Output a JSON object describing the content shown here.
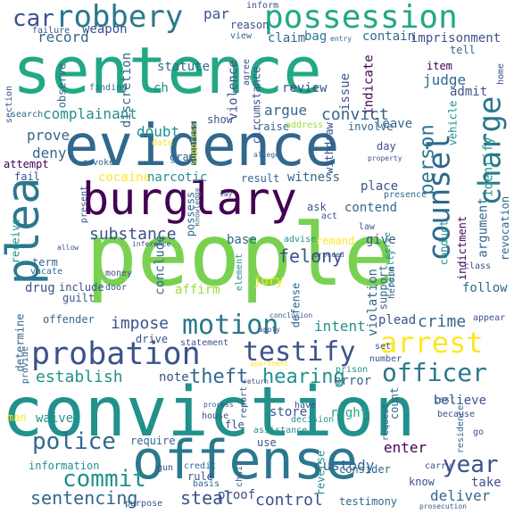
{
  "words": [
    {
      "text": "people",
      "color": "#7ad151"
    },
    {
      "text": "conviction",
      "color": "#21918c"
    },
    {
      "text": "sentence",
      "color": "#22a884"
    },
    {
      "text": "evidence",
      "color": "#31688e"
    },
    {
      "text": "offense",
      "color": "#2a788e"
    },
    {
      "text": "burglary",
      "color": "#440154"
    },
    {
      "text": "plea",
      "color": "#2a788e"
    },
    {
      "text": "possession",
      "color": "#22a884"
    },
    {
      "text": "robbery",
      "color": "#2a788e"
    },
    {
      "text": "probation",
      "color": "#3b528b"
    },
    {
      "text": "counsel",
      "color": "#31688e"
    },
    {
      "text": "charge",
      "color": "#2a788e"
    },
    {
      "text": "arrest",
      "color": "#fde725"
    },
    {
      "text": "motion",
      "color": "#2a788e"
    },
    {
      "text": "testify",
      "color": "#3b528b"
    },
    {
      "text": "officer",
      "color": "#2a788e"
    },
    {
      "text": "police",
      "color": "#31688e"
    },
    {
      "text": "commit",
      "color": "#21918c"
    },
    {
      "text": "year",
      "color": "#3b528b"
    },
    {
      "text": "car",
      "color": "#3b528b"
    },
    {
      "text": "sentencing",
      "color": "#31688e"
    },
    {
      "text": "hearing",
      "color": "#21918c"
    },
    {
      "text": "theft",
      "color": "#31688e"
    },
    {
      "text": "establish",
      "color": "#21918c"
    },
    {
      "text": "felony",
      "color": "#3b528b"
    },
    {
      "text": "steal",
      "color": "#3b528b"
    },
    {
      "text": "control",
      "color": "#3b528b"
    },
    {
      "text": "complainant",
      "color": "#21918c"
    },
    {
      "text": "person",
      "color": "#2a788e"
    },
    {
      "text": "crime",
      "color": "#31688e"
    },
    {
      "text": "deliver",
      "color": "#31688e"
    },
    {
      "text": "take",
      "color": "#3b528b"
    },
    {
      "text": "substance",
      "color": "#3b528b"
    },
    {
      "text": "impose",
      "color": "#3b528b"
    },
    {
      "text": "convict",
      "color": "#31688e"
    },
    {
      "text": "prove",
      "color": "#31688e"
    },
    {
      "text": "record",
      "color": "#31688e"
    },
    {
      "text": "weapon",
      "color": "#3b528b"
    },
    {
      "text": "argue",
      "color": "#31688e"
    },
    {
      "text": "doubt",
      "color": "#21918c"
    },
    {
      "text": "deny",
      "color": "#31688e"
    },
    {
      "text": "cocaine",
      "color": "#fde725"
    },
    {
      "text": "narcotic",
      "color": "#21918c"
    },
    {
      "text": "witness",
      "color": "#31688e"
    },
    {
      "text": "intent",
      "color": "#21918c"
    },
    {
      "text": "enter",
      "color": "#440154"
    },
    {
      "text": "custody",
      "color": "#31688e"
    },
    {
      "text": "store",
      "color": "#3b528b"
    },
    {
      "text": "right",
      "color": "#22a884"
    },
    {
      "text": "error",
      "color": "#31688e"
    },
    {
      "text": "note",
      "color": "#3b528b"
    },
    {
      "text": "drug",
      "color": "#3b528b"
    },
    {
      "text": "statute",
      "color": "#31688e"
    },
    {
      "text": "par",
      "color": "#3b528b"
    },
    {
      "text": "reason",
      "color": "#3b528b"
    },
    {
      "text": "contain",
      "color": "#31688e"
    },
    {
      "text": "imprisonment",
      "color": "#3b528b"
    },
    {
      "text": "claim",
      "color": "#31688e"
    },
    {
      "text": "bag",
      "color": "#2a788e"
    },
    {
      "text": "judge",
      "color": "#31688e"
    },
    {
      "text": "item",
      "color": "#440154"
    },
    {
      "text": "tell",
      "color": "#31688e"
    },
    {
      "text": "admit",
      "color": "#3b528b"
    },
    {
      "text": "review",
      "color": "#3b528b"
    },
    {
      "text": "issue",
      "color": "#3b528b"
    },
    {
      "text": "indicate",
      "color": "#440154"
    },
    {
      "text": "leave",
      "color": "#31688e"
    },
    {
      "text": "vehicle",
      "color": "#21918c"
    },
    {
      "text": "identify",
      "color": "#21918c"
    },
    {
      "text": "ch",
      "color": "#21918c"
    },
    {
      "text": "show",
      "color": "#3b528b"
    },
    {
      "text": "violence",
      "color": "#3b528b"
    },
    {
      "text": "discretion",
      "color": "#31688e"
    },
    {
      "text": "observe",
      "color": "#31688e"
    },
    {
      "text": "finding",
      "color": "#31688e"
    },
    {
      "text": "circumstance",
      "color": "#3b528b"
    },
    {
      "text": "raise",
      "color": "#31688e"
    },
    {
      "text": "address",
      "color": "#a0da39"
    },
    {
      "text": "withdraw",
      "color": "#3b528b"
    },
    {
      "text": "involve",
      "color": "#31688e"
    },
    {
      "text": "day",
      "color": "#3b528b"
    },
    {
      "text": "fail",
      "color": "#3b528b"
    },
    {
      "text": "attempt",
      "color": "#440154"
    },
    {
      "text": "gram",
      "color": "#31688e"
    },
    {
      "text": "result",
      "color": "#31688e"
    },
    {
      "text": "ask",
      "color": "#3b528b"
    },
    {
      "text": "act",
      "color": "#3b528b"
    },
    {
      "text": "contend",
      "color": "#31688e"
    },
    {
      "text": "place",
      "color": "#3b528b"
    },
    {
      "text": "conduct",
      "color": "#21918c"
    },
    {
      "text": "argument",
      "color": "#31688e"
    },
    {
      "text": "revocation",
      "color": "#31688e"
    },
    {
      "text": "indictment",
      "color": "#440154"
    },
    {
      "text": "base",
      "color": "#31688e"
    },
    {
      "text": "remand",
      "color": "#fde725"
    },
    {
      "text": "give",
      "color": "#3b528b"
    },
    {
      "text": "conclude",
      "color": "#31688e"
    },
    {
      "text": "possess",
      "color": "#31688e"
    },
    {
      "text": "receive",
      "color": "#21918c"
    },
    {
      "text": "term",
      "color": "#31688e"
    },
    {
      "text": "include",
      "color": "#3b528b"
    },
    {
      "text": "guilt",
      "color": "#3b528b"
    },
    {
      "text": "affirm",
      "color": "#a0da39"
    },
    {
      "text": "jury",
      "color": "#fde725"
    },
    {
      "text": "defense",
      "color": "#31688e"
    },
    {
      "text": "violation",
      "color": "#31688e"
    },
    {
      "text": "support",
      "color": "#31688e"
    },
    {
      "text": "plead",
      "color": "#3b528b"
    },
    {
      "text": "follow",
      "color": "#31688e"
    },
    {
      "text": "offender",
      "color": "#31688e"
    },
    {
      "text": "determine",
      "color": "#31688e"
    },
    {
      "text": "drive",
      "color": "#3b528b"
    },
    {
      "text": "statement",
      "color": "#3b528b"
    },
    {
      "text": "believe",
      "color": "#3b528b"
    },
    {
      "text": "count",
      "color": "#31688e"
    },
    {
      "text": "man",
      "color": "#fde725"
    },
    {
      "text": "waive",
      "color": "#21918c"
    },
    {
      "text": "require",
      "color": "#31688e"
    },
    {
      "text": "information",
      "color": "#21918c"
    },
    {
      "text": "consider",
      "color": "#31688e"
    },
    {
      "text": "rule",
      "color": "#3b528b"
    },
    {
      "text": "proof",
      "color": "#3b528b"
    },
    {
      "text": "reverse",
      "color": "#21918c"
    },
    {
      "text": "testimony",
      "color": "#31688e"
    },
    {
      "text": "use",
      "color": "#3b528b"
    },
    {
      "text": "fle",
      "color": "#3b528b"
    },
    {
      "text": "know",
      "color": "#3b528b"
    },
    {
      "text": "test",
      "color": "#31688e"
    },
    {
      "text": "money",
      "color": "#3b528b"
    },
    {
      "text": "door",
      "color": "#3b528b"
    },
    {
      "text": "penalty",
      "color": "#21918c"
    },
    {
      "text": "serve",
      "color": "#21918c"
    },
    {
      "text": "class",
      "color": "#3b528b"
    },
    {
      "text": "law",
      "color": "#3b528b"
    },
    {
      "text": "element",
      "color": "#21918c"
    },
    {
      "text": "advise",
      "color": "#21918c"
    },
    {
      "text": "present",
      "color": "#3b528b"
    },
    {
      "text": "search",
      "color": "#31688e"
    },
    {
      "text": "section",
      "color": "#3b528b"
    },
    {
      "text": "date",
      "color": "#fde725"
    },
    {
      "text": "revoke",
      "color": "#31688e"
    },
    {
      "text": "inform",
      "color": "#3b528b"
    },
    {
      "text": "failure",
      "color": "#3b528b"
    },
    {
      "text": "entry",
      "color": "#31688e"
    },
    {
      "text": "home",
      "color": "#3b528b"
    },
    {
      "text": "agree",
      "color": "#3b528b"
    },
    {
      "text": "appear",
      "color": "#3b528b"
    },
    {
      "text": "decision",
      "color": "#21918c"
    },
    {
      "text": "assistance",
      "color": "#21918c"
    },
    {
      "text": "residence",
      "color": "#31688e"
    },
    {
      "text": "request",
      "color": "#31688e"
    },
    {
      "text": "gun",
      "color": "#3b528b"
    },
    {
      "text": "credit",
      "color": "#31688e"
    },
    {
      "text": "purpose",
      "color": "#3b528b"
    },
    {
      "text": "basis",
      "color": "#31688e"
    },
    {
      "text": "chain",
      "color": "#31688e"
    },
    {
      "text": "prosecution",
      "color": "#3b528b"
    },
    {
      "text": "because",
      "color": "#3b528b"
    },
    {
      "text": "house",
      "color": "#3b528b"
    },
    {
      "text": "process",
      "color": "#3b528b"
    },
    {
      "text": "carry",
      "color": "#3b528b"
    },
    {
      "text": "report",
      "color": "#3b528b"
    },
    {
      "text": "have",
      "color": "#3b528b"
    },
    {
      "text": "apartment",
      "color": "#fde725"
    },
    {
      "text": "return",
      "color": "#3b528b"
    },
    {
      "text": "prison",
      "color": "#21918c"
    },
    {
      "text": "heroin",
      "color": "#3b528b"
    },
    {
      "text": "number",
      "color": "#3b528b"
    },
    {
      "text": "set",
      "color": "#3b528b"
    },
    {
      "text": "allege",
      "color": "#31688e"
    },
    {
      "text": "property",
      "color": "#3b528b"
    },
    {
      "text": "presence",
      "color": "#31688e"
    },
    {
      "text": "say",
      "color": "#3b528b"
    },
    {
      "text": "inference",
      "color": "#3b528b"
    },
    {
      "text": "allow",
      "color": "#3b528b"
    },
    {
      "text": "vacate",
      "color": "#31688e"
    },
    {
      "text": "provide",
      "color": "#31688e"
    },
    {
      "text": "suppress",
      "color": "#fde725"
    },
    {
      "text": "knowledge",
      "color": "#31688e"
    },
    {
      "text": "proceed",
      "color": "#3b528b"
    },
    {
      "text": "apply",
      "color": "#3b528b"
    },
    {
      "text": "conclusion",
      "color": "#3b528b"
    },
    {
      "text": "view",
      "color": "#31688e"
    },
    {
      "text": "go",
      "color": "#3b528b"
    }
  ]
}
